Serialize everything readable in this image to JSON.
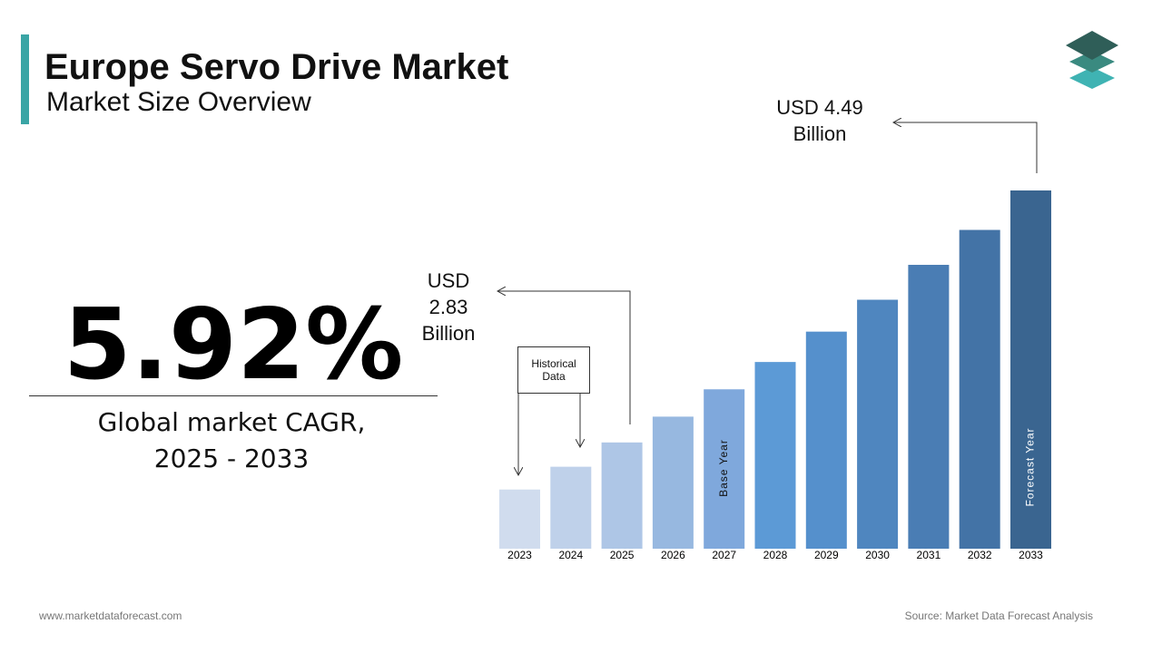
{
  "header": {
    "title": "Europe Servo Drive Market",
    "subtitle": "Market Size Overview"
  },
  "cagr": {
    "value": "5.92%",
    "label": "Global market CAGR, 2025 - 2033"
  },
  "footer": {
    "left": "www.marketdataforecast.com",
    "right": "Source: Market Data Forecast Analysis"
  },
  "chart_data": {
    "type": "bar",
    "categories": [
      "2023",
      "2024",
      "2025",
      "2026",
      "2027",
      "2028",
      "2029",
      "2030",
      "2031",
      "2032",
      "2033"
    ],
    "values": [
      2.52,
      2.67,
      2.83,
      3.0,
      3.18,
      3.36,
      3.56,
      3.77,
      4.0,
      4.23,
      4.49
    ],
    "colors": [
      "#d0dcee",
      "#bfd1ea",
      "#aec6e6",
      "#97b8e0",
      "#7fa8dc",
      "#5c9ad6",
      "#5590cc",
      "#4f86bf",
      "#4a7db4",
      "#4373a6",
      "#3a6590"
    ],
    "ylim": [
      2.13,
      4.49
    ],
    "annotations": [
      "USD 2.83 Billion",
      "USD 4.49 Billion",
      "Historical Data",
      "Base Year",
      "Forecast Year"
    ]
  }
}
